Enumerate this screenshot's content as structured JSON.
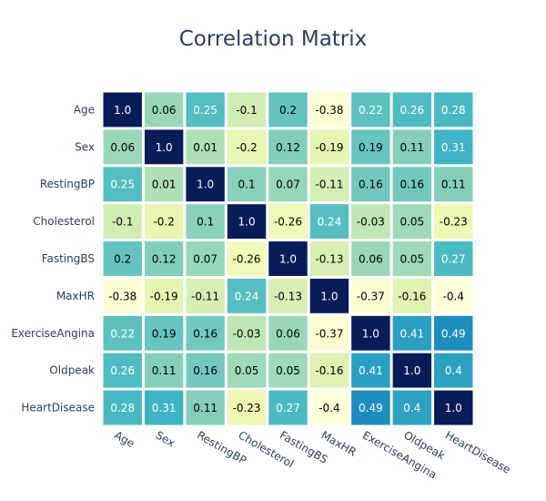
{
  "chart_data": {
    "type": "heatmap",
    "title": "Correlation Matrix",
    "xlabel": "",
    "ylabel": "",
    "x_categories": [
      "Age",
      "Sex",
      "RestingBP",
      "Cholesterol",
      "FastingBS",
      "MaxHR",
      "ExerciseAngina",
      "Oldpeak",
      "HeartDisease"
    ],
    "y_categories": [
      "Age",
      "Sex",
      "RestingBP",
      "Cholesterol",
      "FastingBS",
      "MaxHR",
      "ExerciseAngina",
      "Oldpeak",
      "HeartDisease"
    ],
    "values": [
      [
        1.0,
        0.06,
        0.25,
        -0.1,
        0.2,
        -0.38,
        0.22,
        0.26,
        0.28
      ],
      [
        0.06,
        1.0,
        0.01,
        -0.2,
        0.12,
        -0.19,
        0.19,
        0.11,
        0.31
      ],
      [
        0.25,
        0.01,
        1.0,
        0.1,
        0.07,
        -0.11,
        0.16,
        0.16,
        0.11
      ],
      [
        -0.1,
        -0.2,
        0.1,
        1.0,
        -0.26,
        0.24,
        -0.03,
        0.05,
        -0.23
      ],
      [
        0.2,
        0.12,
        0.07,
        -0.26,
        1.0,
        -0.13,
        0.06,
        0.05,
        0.27
      ],
      [
        -0.38,
        -0.19,
        -0.11,
        0.24,
        -0.13,
        1.0,
        -0.37,
        -0.16,
        -0.4
      ],
      [
        0.22,
        0.19,
        0.16,
        -0.03,
        0.06,
        -0.37,
        1.0,
        0.41,
        0.49
      ],
      [
        0.26,
        0.11,
        0.16,
        0.05,
        0.05,
        -0.16,
        0.41,
        1.0,
        0.4
      ],
      [
        0.28,
        0.31,
        0.11,
        -0.23,
        0.27,
        -0.4,
        0.49,
        0.4,
        1.0
      ]
    ],
    "colorscale": "YlGnBu",
    "zrange": [
      -0.4,
      1.0
    ],
    "showscale": false,
    "cell_text_colors": {
      "light": "#ffffff",
      "dark": "#000000"
    }
  }
}
